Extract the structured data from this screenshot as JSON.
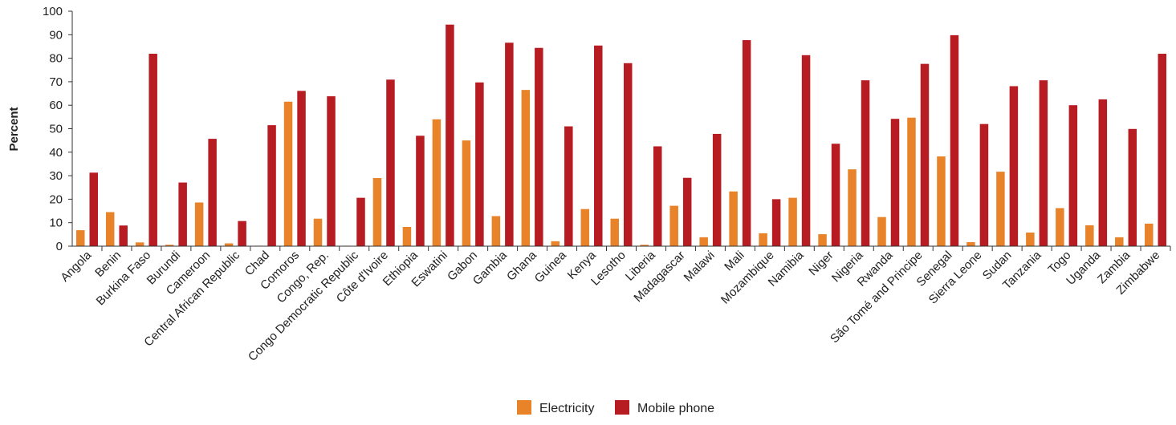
{
  "chart_data": {
    "type": "bar",
    "title": "",
    "xlabel": "",
    "ylabel": "Percent",
    "ylim": [
      0,
      100
    ],
    "yticks": [
      0,
      10,
      20,
      30,
      40,
      50,
      60,
      70,
      80,
      90,
      100
    ],
    "grid": false,
    "legend_position": "bottom",
    "categories": [
      "Angola",
      "Benin",
      "Burkina Faso",
      "Burundi",
      "Cameroon",
      "Central African Republic",
      "Chad",
      "Comoros",
      "Congo, Rep.",
      "Congo Democratic Republic",
      "Côte d'Ivoire",
      "Ethiopia",
      "Eswatini",
      "Gabon",
      "Gambia",
      "Ghana",
      "Guinea",
      "Kenya",
      "Lesotho",
      "Liberia",
      "Madagascar",
      "Malawi",
      "Mali",
      "Mozambique",
      "Namibia",
      "Niger",
      "Nigeria",
      "Rwanda",
      "São Tomé and Principe",
      "Senegal",
      "Sierra Leone",
      "Sudan",
      "Tanzania",
      "Togo",
      "Uganda",
      "Zambia",
      "Zimbabwe"
    ],
    "series": [
      {
        "name": "Electricity",
        "color": "#E8832A",
        "values": [
          6.8,
          14.5,
          1.6,
          0.6,
          18.6,
          1.2,
          0.2,
          61.5,
          11.7,
          0.2,
          29.0,
          8.2,
          54.0,
          45.0,
          12.8,
          66.5,
          2.1,
          15.8,
          11.7,
          0.6,
          17.2,
          3.8,
          23.3,
          5.5,
          20.6,
          5.1,
          32.7,
          12.4,
          54.7,
          38.2,
          1.7,
          31.7,
          5.8,
          16.2,
          8.9,
          3.8,
          9.6
        ]
      },
      {
        "name": "Mobile phone",
        "color": "#B71C22",
        "values": [
          31.3,
          8.8,
          81.9,
          27.1,
          45.7,
          10.7,
          51.5,
          66.1,
          63.8,
          20.6,
          70.9,
          47.0,
          94.3,
          69.7,
          86.6,
          84.4,
          51.0,
          85.4,
          77.9,
          42.5,
          29.1,
          47.8,
          87.7,
          20.0,
          81.3,
          43.6,
          70.6,
          54.2,
          77.6,
          89.8,
          52.0,
          68.1,
          70.6,
          60.0,
          62.5,
          49.9,
          81.9
        ]
      }
    ]
  }
}
